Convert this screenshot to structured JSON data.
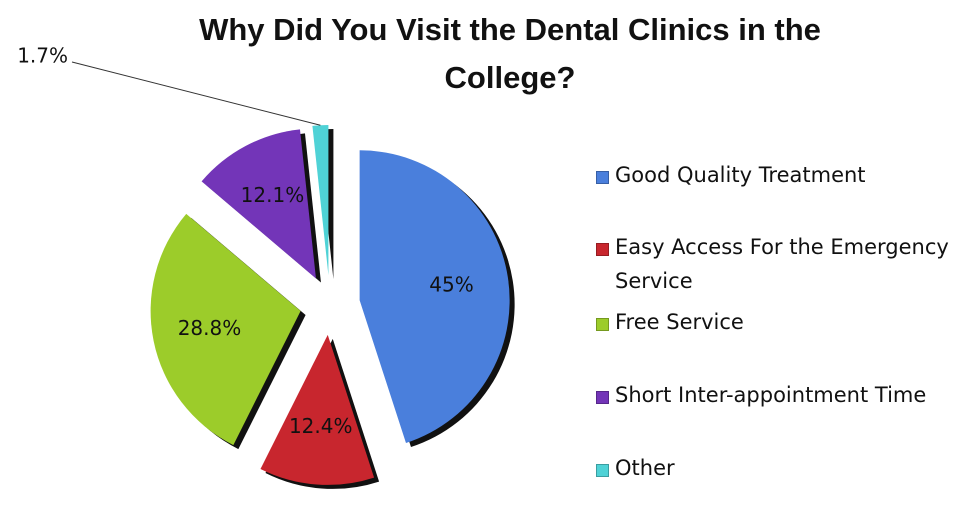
{
  "chart_data": {
    "type": "pie",
    "title": "Why Did You Visit the Dental Clinics in the College?",
    "categories": [
      "Good Quality Treatment",
      "Easy Access For the Emergency Service",
      "Free Service",
      "Short Inter-appointment Time",
      "Other"
    ],
    "values": [
      45,
      12.4,
      28.8,
      12.1,
      1.7
    ],
    "value_labels": [
      "45%",
      "12.4%",
      "28.8%",
      "12.1%",
      "1.7%"
    ],
    "colors": [
      "#4a7fdc",
      "#c8262e",
      "#9ccc2a",
      "#7335b8",
      "#4fd2d6"
    ],
    "legend": "right"
  }
}
